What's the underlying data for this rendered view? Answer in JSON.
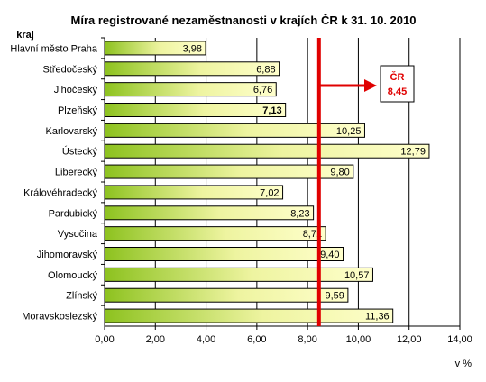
{
  "chart_data": {
    "type": "bar",
    "orientation": "horizontal",
    "title": "Míra registrované nezaměstnanosti v krajích ČR k 31. 10. 2010",
    "ylabel": "kraj",
    "xlabel": "v %",
    "xlim": [
      0,
      14
    ],
    "x_ticks": [
      "0,00",
      "2,00",
      "4,00",
      "6,00",
      "8,00",
      "10,00",
      "12,00",
      "14,00"
    ],
    "grid": "vertical",
    "categories": [
      "Hlavní město Praha",
      "Středočeský",
      "Jihočeský",
      "Plzeňský",
      "Karlovarský",
      "Ústecký",
      "Liberecký",
      "Královéhradecký",
      "Pardubický",
      "Vysočina",
      "Jihomoravský",
      "Olomoucký",
      "Zlínský",
      "Moravskoslezský"
    ],
    "values": [
      3.98,
      6.88,
      6.76,
      7.13,
      10.25,
      12.79,
      9.8,
      7.02,
      8.23,
      8.71,
      9.4,
      10.57,
      9.59,
      11.36
    ],
    "value_labels": [
      "3,98",
      "6,88",
      "6,76",
      "7,13",
      "10,25",
      "12,79",
      "9,80",
      "7,02",
      "8,23",
      "8,71",
      "9,40",
      "10,57",
      "9,59",
      "11,36"
    ],
    "bold_categories": [
      "Plzeňský"
    ],
    "reference_line": {
      "value": 8.45,
      "label_line1": "ČR",
      "label_line2": "8,45",
      "color": "#e00000"
    },
    "colors": {
      "bar_start": "#8dc21f",
      "bar_mid": "#eef4a0",
      "bar_end": "#ffffcc",
      "bar_border": "#000000",
      "reference": "#e00000"
    }
  }
}
